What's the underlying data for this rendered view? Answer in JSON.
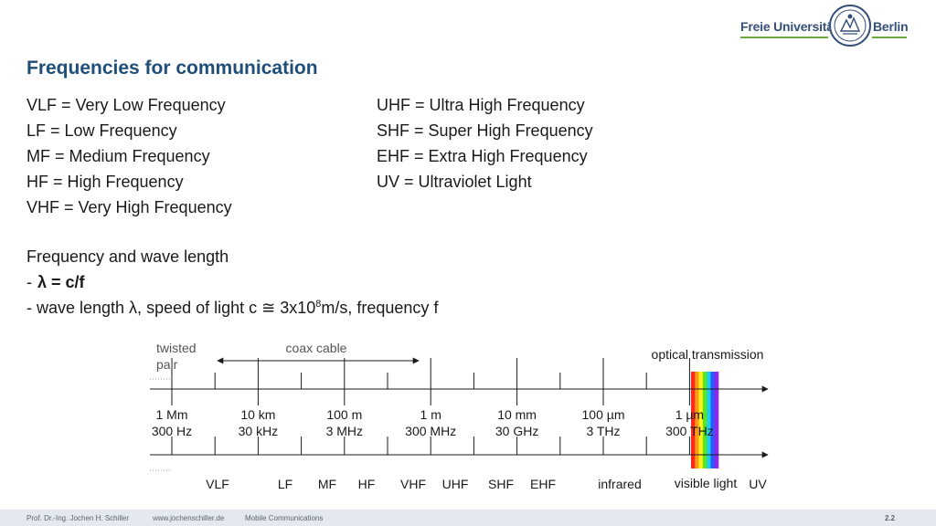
{
  "logo": {
    "left_text": "Freie Universität",
    "right_text": "Berlin"
  },
  "title": "Frequencies for communication",
  "abbreviations_left": [
    "VLF = Very Low Frequency",
    "LF = Low Frequency",
    "MF = Medium Frequency",
    "HF = High Frequency",
    "VHF = Very High Frequency"
  ],
  "abbreviations_right": [
    "UHF = Ultra High Frequency",
    "SHF = Super High Frequency",
    "EHF = Extra High Frequency",
    "UV = Ultraviolet Light"
  ],
  "wave": {
    "heading": "Frequency and wave length",
    "formula": "λ = c/f",
    "desc_pre": "- wave length λ, speed of light c ≅ 3x10",
    "desc_sup": "8",
    "desc_post": "m/s, frequency f"
  },
  "diagram": {
    "twisted_pair": [
      "twisted",
      "pair"
    ],
    "coax": "coax cable",
    "optical": "optical transmission",
    "wavelengths": [
      "1 Mm",
      "10 km",
      "100 m",
      "1 m",
      "10 mm",
      "100 µm",
      "1 µm"
    ],
    "frequencies": [
      "300 Hz",
      "30 kHz",
      "3 MHz",
      "300 MHz",
      "30 GHz",
      "3 THz",
      "300 THz"
    ],
    "bands": [
      "VLF",
      "LF",
      "MF",
      "HF",
      "VHF",
      "UHF",
      "SHF",
      "EHF",
      "infrared",
      "visible light",
      "UV"
    ],
    "spectrum_colors": [
      "#ff2a1a",
      "#ff9a1a",
      "#fff21a",
      "#5ae61a",
      "#1ad2e6",
      "#2a5aff",
      "#8a2ae6"
    ]
  },
  "footer": {
    "author": "Prof. Dr.-Ing. Jochen H. Schiller",
    "website": "www.jochenschiller.de",
    "course": "Mobile Communications",
    "page": "2.2"
  }
}
